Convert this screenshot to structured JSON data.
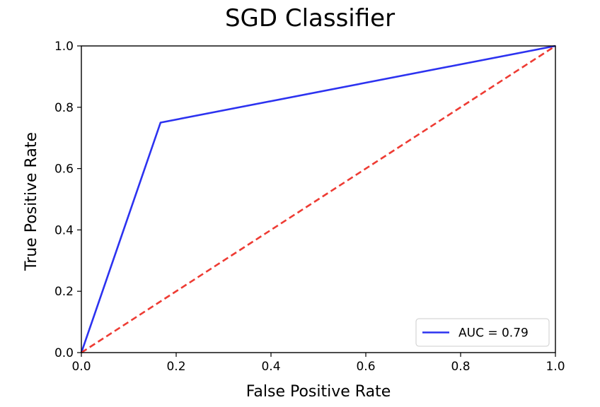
{
  "chart_data": {
    "type": "line",
    "title": "SGD Classifier",
    "xlabel": "False Positive Rate",
    "ylabel": "True Positive Rate",
    "xlim": [
      0.0,
      1.0
    ],
    "ylim": [
      0.0,
      1.0
    ],
    "xticks": [
      "0.0",
      "0.2",
      "0.4",
      "0.6",
      "0.8",
      "1.0"
    ],
    "yticks": [
      "0.0",
      "0.2",
      "0.4",
      "0.6",
      "0.8",
      "1.0"
    ],
    "grid": false,
    "legend_position": "bottom-right",
    "series": [
      {
        "name": "AUC = 0.79",
        "style": "solid",
        "color": "#2c32f0",
        "x": [
          0.0,
          0.167,
          1.0
        ],
        "y": [
          0.0,
          0.75,
          1.0
        ]
      },
      {
        "style": "dashed",
        "color": "#ee3b33",
        "x": [
          0.0,
          1.0
        ],
        "y": [
          0.0,
          1.0
        ]
      }
    ]
  }
}
